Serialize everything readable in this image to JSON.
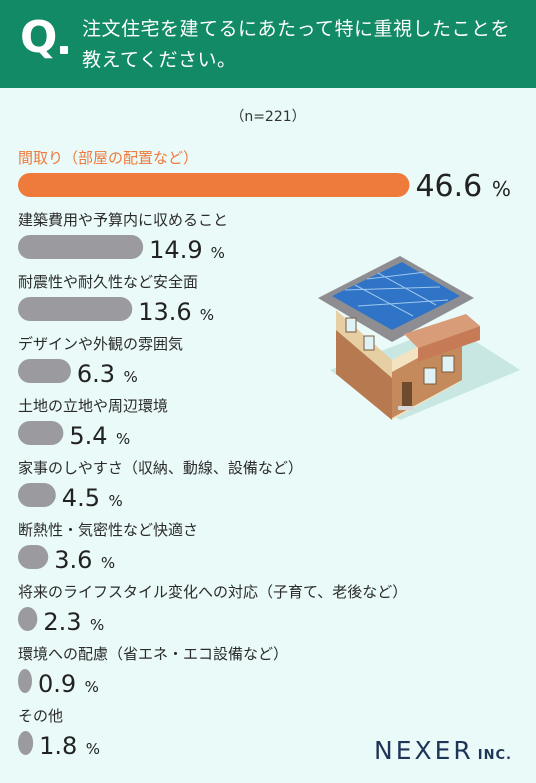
{
  "header": {
    "q_letter": "Q",
    "question": "注文住宅を建てるにあたって特に重視したことを教えてください。"
  },
  "sample_size": "（n=221）",
  "logo": {
    "name": "NEXER",
    "suffix": "INC."
  },
  "colors": {
    "header": "#128a66",
    "highlight": "#ee7a3c",
    "bar": "#9b9a9f",
    "background": "#e9faf8"
  },
  "chart_data": {
    "type": "bar",
    "orientation": "horizontal",
    "value_suffix": "%",
    "categories": [
      "間取り（部屋の配置など）",
      "建築費用や予算内に収めること",
      "耐震性や耐久性など安全面",
      "デザインや外観の雰囲気",
      "土地の立地や周辺環境",
      "家事のしやすさ（収納、動線、設備など）",
      "断熱性・気密性など快適さ",
      "将来のライフスタイル変化への対応（子育て、老後など）",
      "環境への配慮（省エネ・エコ設備など）",
      "その他"
    ],
    "values": [
      46.6,
      14.9,
      13.6,
      6.3,
      5.4,
      4.5,
      3.6,
      2.3,
      0.9,
      1.8
    ],
    "value_labels": [
      "46.6",
      "14.9",
      "13.6",
      "6.3",
      "5.4",
      "4.5",
      "3.6",
      "2.3",
      "0.9",
      "1.8"
    ],
    "highlight_index": 0
  }
}
